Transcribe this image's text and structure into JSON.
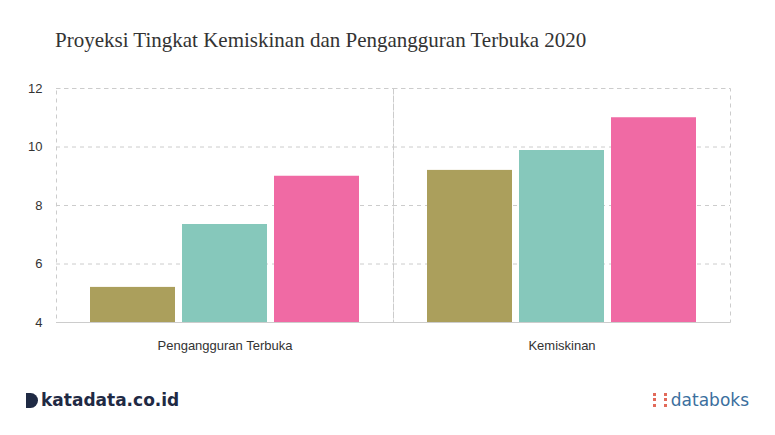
{
  "chart_data": {
    "type": "bar",
    "title": "Proyeksi Tingkat Kemiskinan dan Pengangguran Terbuka 2020",
    "categories": [
      "Pengangguran Terbuka",
      "Kemiskinan"
    ],
    "series": [
      {
        "color": "#ab9f5c",
        "values": [
          5.2,
          9.2
        ]
      },
      {
        "color": "#86c8bb",
        "values": [
          7.35,
          9.88
        ]
      },
      {
        "color": "#f06aa4",
        "values": [
          9.0,
          11.0
        ]
      }
    ],
    "ylim": [
      4,
      12
    ],
    "yticks": [
      4,
      6,
      8,
      10,
      12
    ],
    "grid": true,
    "branding": [
      "katadata.co.id",
      "databoks"
    ]
  }
}
